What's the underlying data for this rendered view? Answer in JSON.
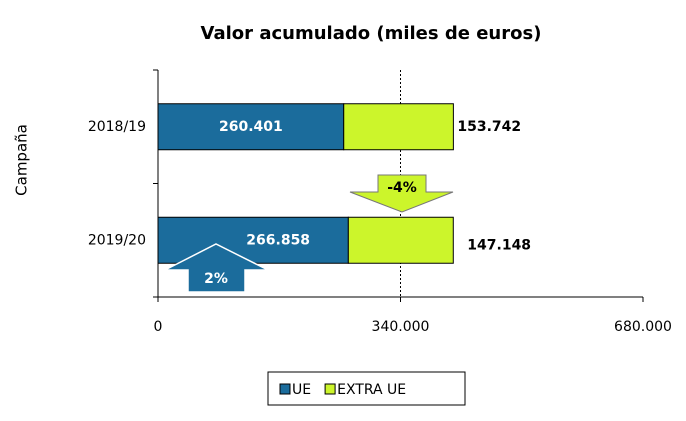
{
  "chart_data": {
    "type": "stacked_barh",
    "title": "Valor acumulado (miles de euros)",
    "y_label": "Campaña",
    "categories": [
      "2018/19",
      "2019/20"
    ],
    "series": [
      {
        "name": "UE",
        "color": "#1b6c9c",
        "values": [
          260401,
          266858
        ],
        "value_labels": [
          "260.401",
          "266.858"
        ]
      },
      {
        "name": "EXTRA UE",
        "color": "#ccf52b",
        "values": [
          153742,
          147148
        ],
        "value_labels": [
          "153.742",
          "147.148"
        ]
      }
    ],
    "xlim": [
      0,
      680000
    ],
    "xticks": [
      0,
      {
        "value": 340000,
        "label": "340.000"
      },
      {
        "value": 680000,
        "label": "680.000"
      }
    ],
    "grid": true,
    "legend": "bottom",
    "annotations": [
      "2%",
      "-4%"
    ]
  }
}
